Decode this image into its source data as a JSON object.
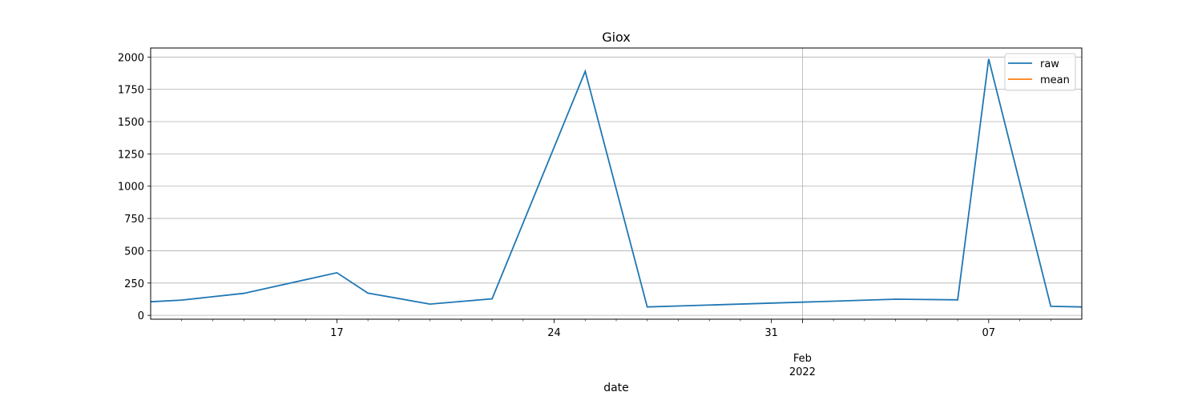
{
  "chart_data": {
    "type": "line",
    "title": "Giox",
    "xlabel": "date",
    "ylabel": "",
    "x_start": "2022-01-11",
    "x_end": "2022-02-10",
    "ylim": [
      -30,
      2070
    ],
    "y_ticks": [
      0,
      250,
      500,
      750,
      1000,
      1250,
      1500,
      1750,
      2000
    ],
    "x_major_ticks": [
      {
        "date": "2022-01-17",
        "label": "17"
      },
      {
        "date": "2022-01-24",
        "label": "24"
      },
      {
        "date": "2022-01-31",
        "label": "31"
      },
      {
        "date": "2022-02-07",
        "label": "07"
      }
    ],
    "month_label": {
      "date": "2022-02-01",
      "month": "Feb",
      "year": "2022"
    },
    "grid": true,
    "legend_position": "top-right",
    "series": [
      {
        "name": "raw",
        "color": "#1f77b4",
        "points": [
          {
            "x": "2022-01-11",
            "y": 105
          },
          {
            "x": "2022-01-12",
            "y": 118
          },
          {
            "x": "2022-01-14",
            "y": 170
          },
          {
            "x": "2022-01-17",
            "y": 330
          },
          {
            "x": "2022-01-18",
            "y": 172
          },
          {
            "x": "2022-01-20",
            "y": 87
          },
          {
            "x": "2022-01-22",
            "y": 128
          },
          {
            "x": "2022-01-25",
            "y": 1890
          },
          {
            "x": "2022-01-27",
            "y": 65
          },
          {
            "x": "2022-02-01",
            "y": 102
          },
          {
            "x": "2022-02-04",
            "y": 125
          },
          {
            "x": "2022-02-06",
            "y": 120
          },
          {
            "x": "2022-02-07",
            "y": 1985
          },
          {
            "x": "2022-02-09",
            "y": 70
          },
          {
            "x": "2022-02-10",
            "y": 65
          }
        ]
      },
      {
        "name": "mean",
        "color": "#ff7f0e",
        "points": []
      }
    ]
  }
}
